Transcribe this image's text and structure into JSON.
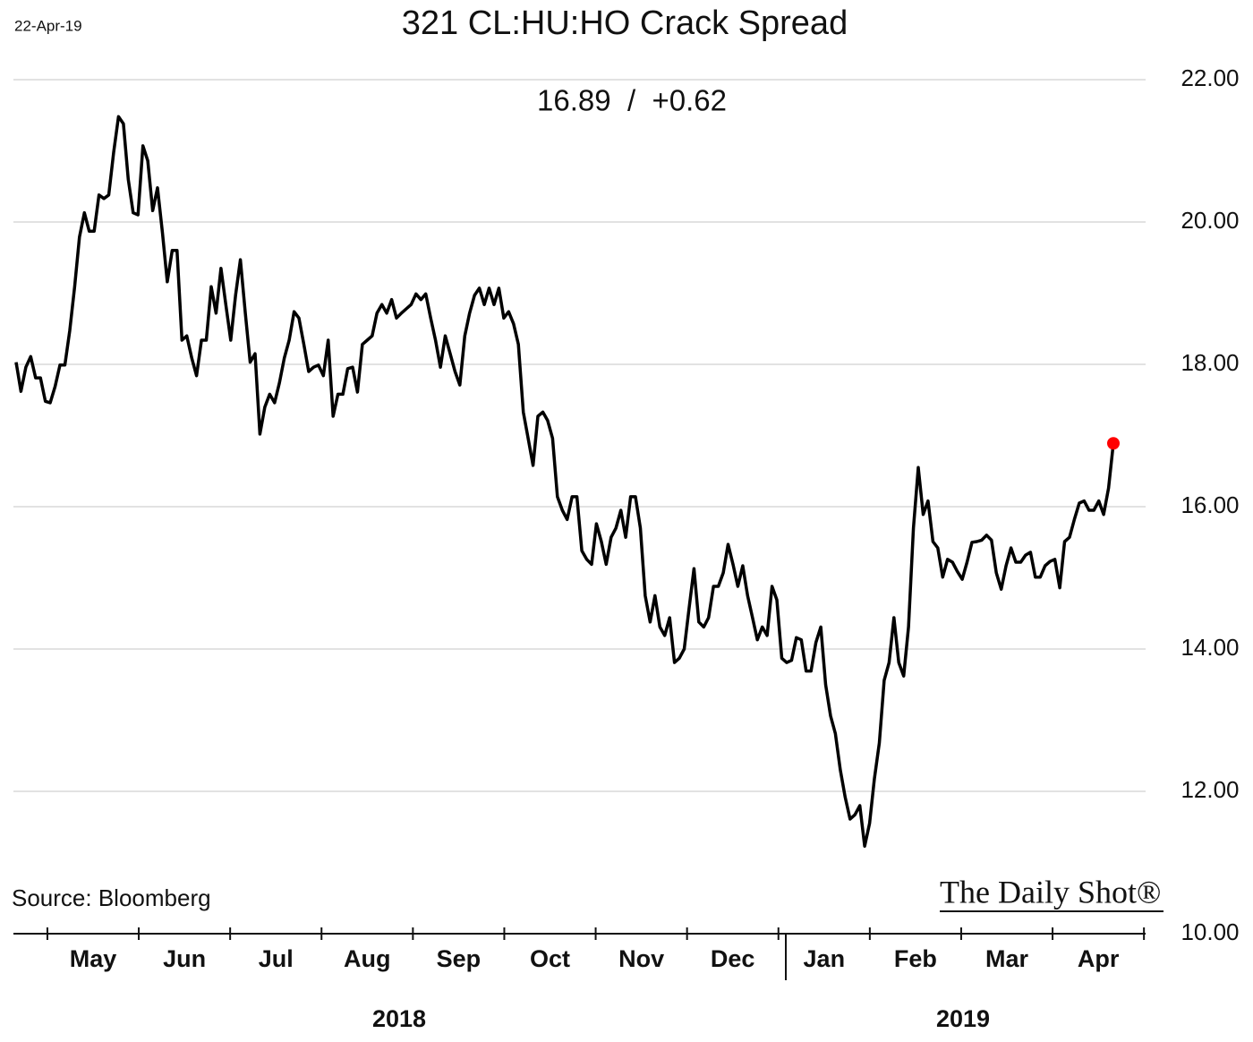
{
  "chart_data": {
    "type": "line",
    "date": "22-Apr-19",
    "title": "321 CL:HU:HO Crack Spread",
    "subtitle": "16.89  /  +0.62",
    "source": "Source: Bloomberg",
    "watermark": "The Daily Shot®",
    "months": [
      "May",
      "Jun",
      "Jul",
      "Aug",
      "Sep",
      "Oct",
      "Nov",
      "Dec",
      "Jan",
      "Feb",
      "Mar",
      "Apr"
    ],
    "years": [
      "2018",
      "2019"
    ],
    "ylim": [
      10,
      22
    ],
    "yticks": [
      {
        "value": 10,
        "label": "10.00"
      },
      {
        "value": 12,
        "label": "12.00"
      },
      {
        "value": 14,
        "label": "14.00"
      },
      {
        "value": 16,
        "label": "16.00"
      },
      {
        "value": 18,
        "label": "18.00"
      },
      {
        "value": 20,
        "label": "20.00"
      },
      {
        "value": 22,
        "label": "22.00"
      }
    ],
    "grid": true,
    "color": "#000000",
    "last_point_color": "#ff0000",
    "values": [
      18.03,
      17.62,
      17.96,
      18.11,
      17.81,
      17.81,
      17.48,
      17.46,
      17.69,
      17.99,
      17.99,
      18.47,
      19.09,
      19.79,
      20.13,
      19.87,
      19.87,
      20.38,
      20.33,
      20.38,
      20.98,
      21.48,
      21.38,
      20.6,
      20.13,
      20.1,
      21.07,
      20.86,
      20.16,
      20.48,
      19.85,
      19.16,
      19.6,
      19.6,
      18.34,
      18.4,
      18.09,
      17.84,
      18.34,
      18.34,
      19.09,
      18.72,
      19.35,
      18.84,
      18.34,
      18.97,
      19.47,
      18.72,
      18.03,
      18.15,
      17.02,
      17.4,
      17.58,
      17.46,
      17.74,
      18.09,
      18.34,
      18.74,
      18.65,
      18.28,
      17.9,
      17.96,
      17.99,
      17.84,
      18.34,
      17.27,
      17.58,
      17.58,
      17.94,
      17.96,
      17.61,
      18.28,
      18.34,
      18.4,
      18.72,
      18.84,
      18.72,
      18.91,
      18.65,
      18.72,
      18.78,
      18.84,
      18.99,
      18.91,
      18.99,
      18.65,
      18.34,
      17.96,
      18.4,
      18.15,
      17.9,
      17.71,
      18.4,
      18.72,
      18.97,
      19.07,
      18.84,
      19.07,
      18.84,
      19.07,
      18.65,
      18.74,
      18.57,
      18.28,
      17.33,
      16.96,
      16.58,
      17.27,
      17.33,
      17.21,
      16.96,
      16.14,
      15.95,
      15.82,
      16.14,
      16.14,
      15.38,
      15.26,
      15.19,
      15.76,
      15.51,
      15.19,
      15.57,
      15.7,
      15.95,
      15.57,
      16.14,
      16.14,
      15.7,
      14.75,
      14.38,
      14.75,
      14.31,
      14.19,
      14.44,
      13.81,
      13.87,
      14.0,
      14.57,
      15.13,
      14.38,
      14.31,
      14.44,
      14.88,
      14.88,
      15.07,
      15.47,
      15.19,
      14.88,
      15.17,
      14.75,
      14.44,
      14.13,
      14.31,
      14.19,
      14.88,
      14.69,
      13.87,
      13.81,
      13.84,
      14.16,
      14.13,
      13.69,
      13.69,
      14.09,
      14.31,
      13.5,
      13.06,
      12.81,
      12.3,
      11.92,
      11.61,
      11.67,
      11.8,
      11.23,
      11.55,
      12.18,
      12.68,
      13.56,
      13.81,
      14.44,
      13.81,
      13.62,
      14.31,
      15.7,
      16.55,
      15.89,
      16.08,
      15.51,
      15.42,
      15.01,
      15.26,
      15.22,
      15.09,
      14.98,
      15.22,
      15.5,
      15.51,
      15.53,
      15.6,
      15.53,
      15.07,
      14.84,
      15.17,
      15.42,
      15.22,
      15.22,
      15.32,
      15.36,
      15.01,
      15.01,
      15.17,
      15.23,
      15.26,
      14.86,
      15.51,
      15.57,
      15.82,
      16.05,
      16.08,
      15.95,
      15.95,
      16.08,
      15.89,
      16.26,
      16.89
    ]
  }
}
